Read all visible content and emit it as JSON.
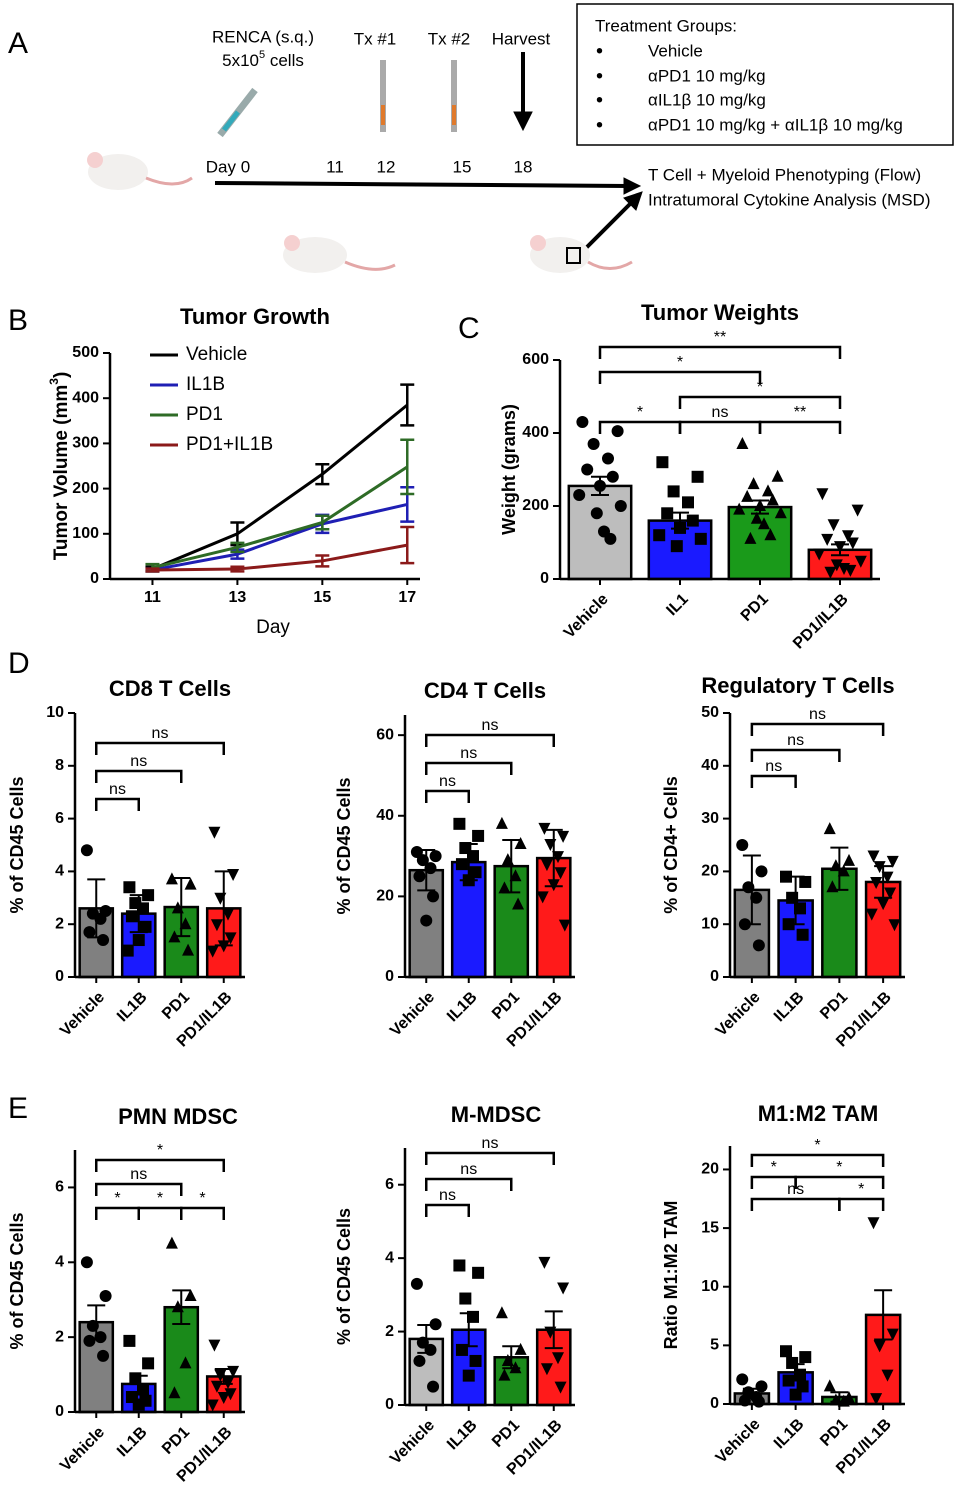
{
  "panel_labels": [
    "A",
    "B",
    "C",
    "D",
    "E"
  ],
  "schematic": {
    "renca": "RENCA (s.q.)",
    "cells": {
      "base": "5x10",
      "exp": "5",
      "unit": " cells"
    },
    "tx1": "Tx #1",
    "tx2": "Tx #2",
    "harvest": "Harvest",
    "days": [
      "Day 0",
      "11",
      "12",
      "15",
      "18"
    ],
    "treatment_title": "Treatment Groups:",
    "treatment_groups": [
      "Vehicle",
      "αPD1 10 mg/kg",
      "αIL1β 10 mg/kg",
      "αPD1 10 mg/kg  + αIL1β 10 mg/kg"
    ],
    "outputs": [
      "T Cell + Myeloid Phenotyping (Flow)",
      "Intratumoral Cytokine Analysis (MSD)"
    ]
  },
  "chart_data": [
    {
      "type": "line",
      "title": "Tumor Growth",
      "xlabel": "Day",
      "ylabel": [
        "Tumor  Volume (mm",
        "3",
        ")"
      ],
      "x": [
        11,
        13,
        15,
        17
      ],
      "xlim": [
        10,
        17.3
      ],
      "xticks": [
        11,
        13,
        15,
        17
      ],
      "ylim": [
        0,
        500
      ],
      "yticks": [
        0,
        100,
        200,
        300,
        400,
        500
      ],
      "legend": "top-left",
      "series": [
        {
          "name": "Vehicle",
          "color": "#000000",
          "values": [
            22,
            100,
            232,
            385
          ],
          "errors": [
            5,
            25,
            22,
            45
          ]
        },
        {
          "name": "IL1B",
          "color": "#1f1fb4",
          "values": [
            20,
            55,
            122,
            165
          ],
          "errors": [
            3,
            10,
            20,
            38
          ]
        },
        {
          "name": "PD1",
          "color": "#2e6b26",
          "values": [
            25,
            70,
            125,
            248
          ],
          "errors": [
            8,
            10,
            15,
            60
          ]
        },
        {
          "name": "PD1+IL1B",
          "color": "#8b1a1a",
          "values": [
            20,
            22,
            40,
            75
          ],
          "errors": [
            3,
            5,
            12,
            40
          ]
        }
      ]
    },
    {
      "type": "bar",
      "title": "Tumor Weights",
      "ylabel": "Weight (grams)",
      "categories": [
        "Vehicle",
        "IL1",
        "PD1",
        "PD1/IL1B"
      ],
      "colors": [
        "#bdbdbd",
        "#1a1aff",
        "#1a9a1a",
        "#ff1a1a"
      ],
      "markers": [
        "circle",
        "square",
        "triangle",
        "triangle-down"
      ],
      "values": [
        255,
        160,
        197,
        80
      ],
      "errors": [
        25,
        22,
        18,
        15
      ],
      "points": [
        [
          430,
          405,
          370,
          330,
          300,
          280,
          255,
          230,
          200,
          180,
          130,
          110
        ],
        [
          320,
          280,
          240,
          210,
          180,
          160,
          140,
          120,
          110,
          90
        ],
        [
          370,
          280,
          260,
          240,
          225,
          215,
          200,
          190,
          180,
          165,
          150,
          120,
          110
        ],
        [
          235,
          190,
          150,
          120,
          110,
          100,
          90,
          70,
          50,
          40,
          30,
          25,
          20
        ]
      ],
      "ylim": [
        0,
        600
      ],
      "yticks": [
        0,
        200,
        400,
        600
      ],
      "brackets": [
        {
          "from": 0,
          "to": 1,
          "label": "*"
        },
        {
          "from": 1,
          "to": 2,
          "label": "ns"
        },
        {
          "from": 2,
          "to": 3,
          "label": "**"
        },
        {
          "from": 1,
          "to": 3,
          "label": "*"
        },
        {
          "from": 0,
          "to": 2,
          "label": "*"
        },
        {
          "from": 0,
          "to": 3,
          "label": "**"
        }
      ]
    },
    {
      "type": "bar",
      "title": "CD8 T Cells",
      "ylabel": "% of CD45 Cells",
      "categories": [
        "Vehicle",
        "IL1B",
        "PD1",
        "PD1/IL1B"
      ],
      "colors": [
        "#808080",
        "#1a1aff",
        "#1a8a1a",
        "#ff1a1a"
      ],
      "markers": [
        "circle",
        "square",
        "triangle",
        "triangle-down"
      ],
      "values": [
        2.6,
        2.4,
        2.65,
        2.6
      ],
      "errors": [
        1.1,
        0.7,
        1.1,
        1.4
      ],
      "points": [
        [
          4.8,
          2.5,
          2.4,
          2.2,
          1.7,
          1.4
        ],
        [
          3.4,
          3.1,
          2.8,
          2.6,
          2.3,
          1.9,
          1.4,
          1.0
        ],
        [
          3.7,
          3.5,
          2.6,
          2.0,
          1.5,
          1.0
        ],
        [
          5.5,
          3.9,
          3.0,
          2.4,
          2.0,
          1.5,
          1.2,
          1.0
        ]
      ],
      "ylim": [
        0,
        10
      ],
      "yticks": [
        0,
        2,
        4,
        6,
        8,
        10
      ],
      "brackets": [
        {
          "from": 0,
          "to": 1,
          "label": "ns"
        },
        {
          "from": 0,
          "to": 2,
          "label": "ns"
        },
        {
          "from": 0,
          "to": 3,
          "label": "ns"
        }
      ]
    },
    {
      "type": "bar",
      "title": "CD4 T Cells",
      "ylabel": "% of CD45 Cells",
      "categories": [
        "Vehicle",
        "IL1B",
        "PD1",
        "PD1/IL1B"
      ],
      "colors": [
        "#808080",
        "#1a1aff",
        "#1a8a1a",
        "#ff1a1a"
      ],
      "markers": [
        "circle",
        "square",
        "triangle",
        "triangle-down"
      ],
      "values": [
        26.5,
        28.5,
        27.5,
        29.5
      ],
      "errors": [
        5,
        4.5,
        6.5,
        7
      ],
      "points": [
        [
          31,
          30,
          29,
          27,
          25,
          20,
          14
        ],
        [
          38,
          35,
          32,
          30,
          28,
          26,
          24
        ],
        [
          38,
          33,
          29,
          25,
          22,
          18
        ],
        [
          37,
          35,
          33,
          30,
          28,
          26,
          23,
          20,
          13
        ]
      ],
      "ylim": [
        0,
        65
      ],
      "yticks": [
        0,
        20,
        40,
        60
      ],
      "brackets": [
        {
          "from": 0,
          "to": 1,
          "label": "ns"
        },
        {
          "from": 0,
          "to": 2,
          "label": "ns"
        },
        {
          "from": 0,
          "to": 3,
          "label": "ns"
        }
      ]
    },
    {
      "type": "bar",
      "title": "Regulatory T Cells",
      "ylabel": "% of CD4+ Cells",
      "categories": [
        "Vehicle",
        "IL1B",
        "PD1",
        "PD1/IL1B"
      ],
      "colors": [
        "#808080",
        "#1a1aff",
        "#1a8a1a",
        "#ff1a1a"
      ],
      "markers": [
        "circle",
        "square",
        "triangle",
        "triangle-down"
      ],
      "values": [
        16.5,
        14.5,
        20.5,
        18
      ],
      "errors": [
        6.5,
        4.5,
        4,
        3
      ],
      "points": [
        [
          25,
          20,
          17,
          15,
          10,
          6
        ],
        [
          19,
          18,
          15,
          13,
          10,
          8
        ],
        [
          28,
          22,
          21,
          20,
          17
        ],
        [
          23,
          22,
          21,
          19,
          18,
          16,
          14,
          12,
          10
        ]
      ],
      "ylim": [
        0,
        50
      ],
      "yticks": [
        0,
        10,
        20,
        30,
        40,
        50
      ],
      "brackets": [
        {
          "from": 0,
          "to": 1,
          "label": "ns"
        },
        {
          "from": 0,
          "to": 2,
          "label": "ns"
        },
        {
          "from": 0,
          "to": 3,
          "label": "ns"
        }
      ]
    },
    {
      "type": "bar",
      "title": "PMN MDSC",
      "ylabel": "% of CD45 Cells",
      "categories": [
        "Vehicle",
        "IL1B",
        "PD1",
        "PD1/IL1B"
      ],
      "colors": [
        "#808080",
        "#1a1aff",
        "#1a8a1a",
        "#ff1a1a"
      ],
      "markers": [
        "circle",
        "square",
        "triangle",
        "triangle-down"
      ],
      "values": [
        2.4,
        0.75,
        2.8,
        0.95
      ],
      "errors": [
        0.45,
        0.22,
        0.45,
        0.2
      ],
      "points": [
        [
          4.0,
          3.1,
          2.3,
          2.0,
          1.9,
          1.5
        ],
        [
          1.9,
          1.3,
          0.9,
          0.6,
          0.4,
          0.3,
          0.2
        ],
        [
          4.5,
          3.1,
          2.8,
          1.3,
          0.5
        ],
        [
          1.8,
          1.1,
          1.0,
          0.8,
          0.7,
          0.5,
          0.4,
          0.2
        ]
      ],
      "ylim": [
        0,
        7
      ],
      "yticks": [
        0,
        2,
        4,
        6
      ],
      "brackets": [
        {
          "from": 0,
          "to": 1,
          "label": "*"
        },
        {
          "from": 1,
          "to": 2,
          "label": "*"
        },
        {
          "from": 0,
          "to": 2,
          "label": "ns"
        },
        {
          "from": 2,
          "to": 3,
          "label": "*"
        },
        {
          "from": 0,
          "to": 3,
          "label": "*"
        }
      ]
    },
    {
      "type": "bar",
      "title": "M-MDSC",
      "ylabel": "% of CD45 Cells",
      "categories": [
        "Vehicle",
        "IL1B",
        "PD1",
        "PD1/IL1B"
      ],
      "colors": [
        "#bdbdbd",
        "#1a1aff",
        "#1a8a1a",
        "#ff1a1a"
      ],
      "markers": [
        "circle",
        "square",
        "triangle",
        "triangle-down"
      ],
      "values": [
        1.8,
        2.05,
        1.3,
        2.05
      ],
      "errors": [
        0.38,
        0.45,
        0.3,
        0.5
      ],
      "points": [
        [
          3.3,
          2.2,
          1.7,
          1.5,
          1.2,
          0.5
        ],
        [
          3.8,
          3.6,
          2.9,
          2.4,
          1.5,
          1.2,
          0.8
        ],
        [
          2.5,
          1.5,
          1.2,
          1.0,
          0.8
        ],
        [
          3.9,
          3.2,
          2.0,
          1.3,
          1.0,
          0.5
        ]
      ],
      "ylim": [
        0,
        7
      ],
      "yticks": [
        0,
        2,
        4,
        6
      ],
      "brackets": [
        {
          "from": 0,
          "to": 1,
          "label": "ns"
        },
        {
          "from": 0,
          "to": 2,
          "label": "ns"
        },
        {
          "from": 0,
          "to": 3,
          "label": "ns"
        }
      ]
    },
    {
      "type": "bar",
      "title": "M1:M2 TAM",
      "ylabel": "Ratio M1:M2 TAM",
      "categories": [
        "Vehicle",
        "IL1B",
        "PD1",
        "PD1/IL1B"
      ],
      "colors": [
        "#808080",
        "#1a1aff",
        "#1a8a1a",
        "#ff1a1a"
      ],
      "markers": [
        "circle",
        "square",
        "triangle",
        "triangle-down"
      ],
      "values": [
        0.9,
        2.7,
        0.6,
        7.6
      ],
      "errors": [
        0.4,
        0.7,
        0.4,
        2.1
      ],
      "points": [
        [
          2.1,
          1.5,
          1.0,
          0.6,
          0.3,
          0.2
        ],
        [
          4.5,
          4.0,
          3.5,
          2.5,
          2.0,
          1.5,
          0.8
        ],
        [
          1.5,
          0.5,
          0.3,
          0.2
        ],
        [
          15.5,
          6.0,
          5.0,
          2.5,
          0.5
        ]
      ],
      "ylim": [
        0,
        22
      ],
      "yticks": [
        0,
        5,
        10,
        15,
        20
      ],
      "brackets": [
        {
          "from": 0,
          "to": 2,
          "label": "ns"
        },
        {
          "from": 2,
          "to": 3,
          "label": "*"
        },
        {
          "from": 0,
          "to": 1,
          "label": "*"
        },
        {
          "from": 1,
          "to": 3,
          "label": "*"
        },
        {
          "from": 0,
          "to": 3,
          "label": "*"
        }
      ]
    }
  ]
}
